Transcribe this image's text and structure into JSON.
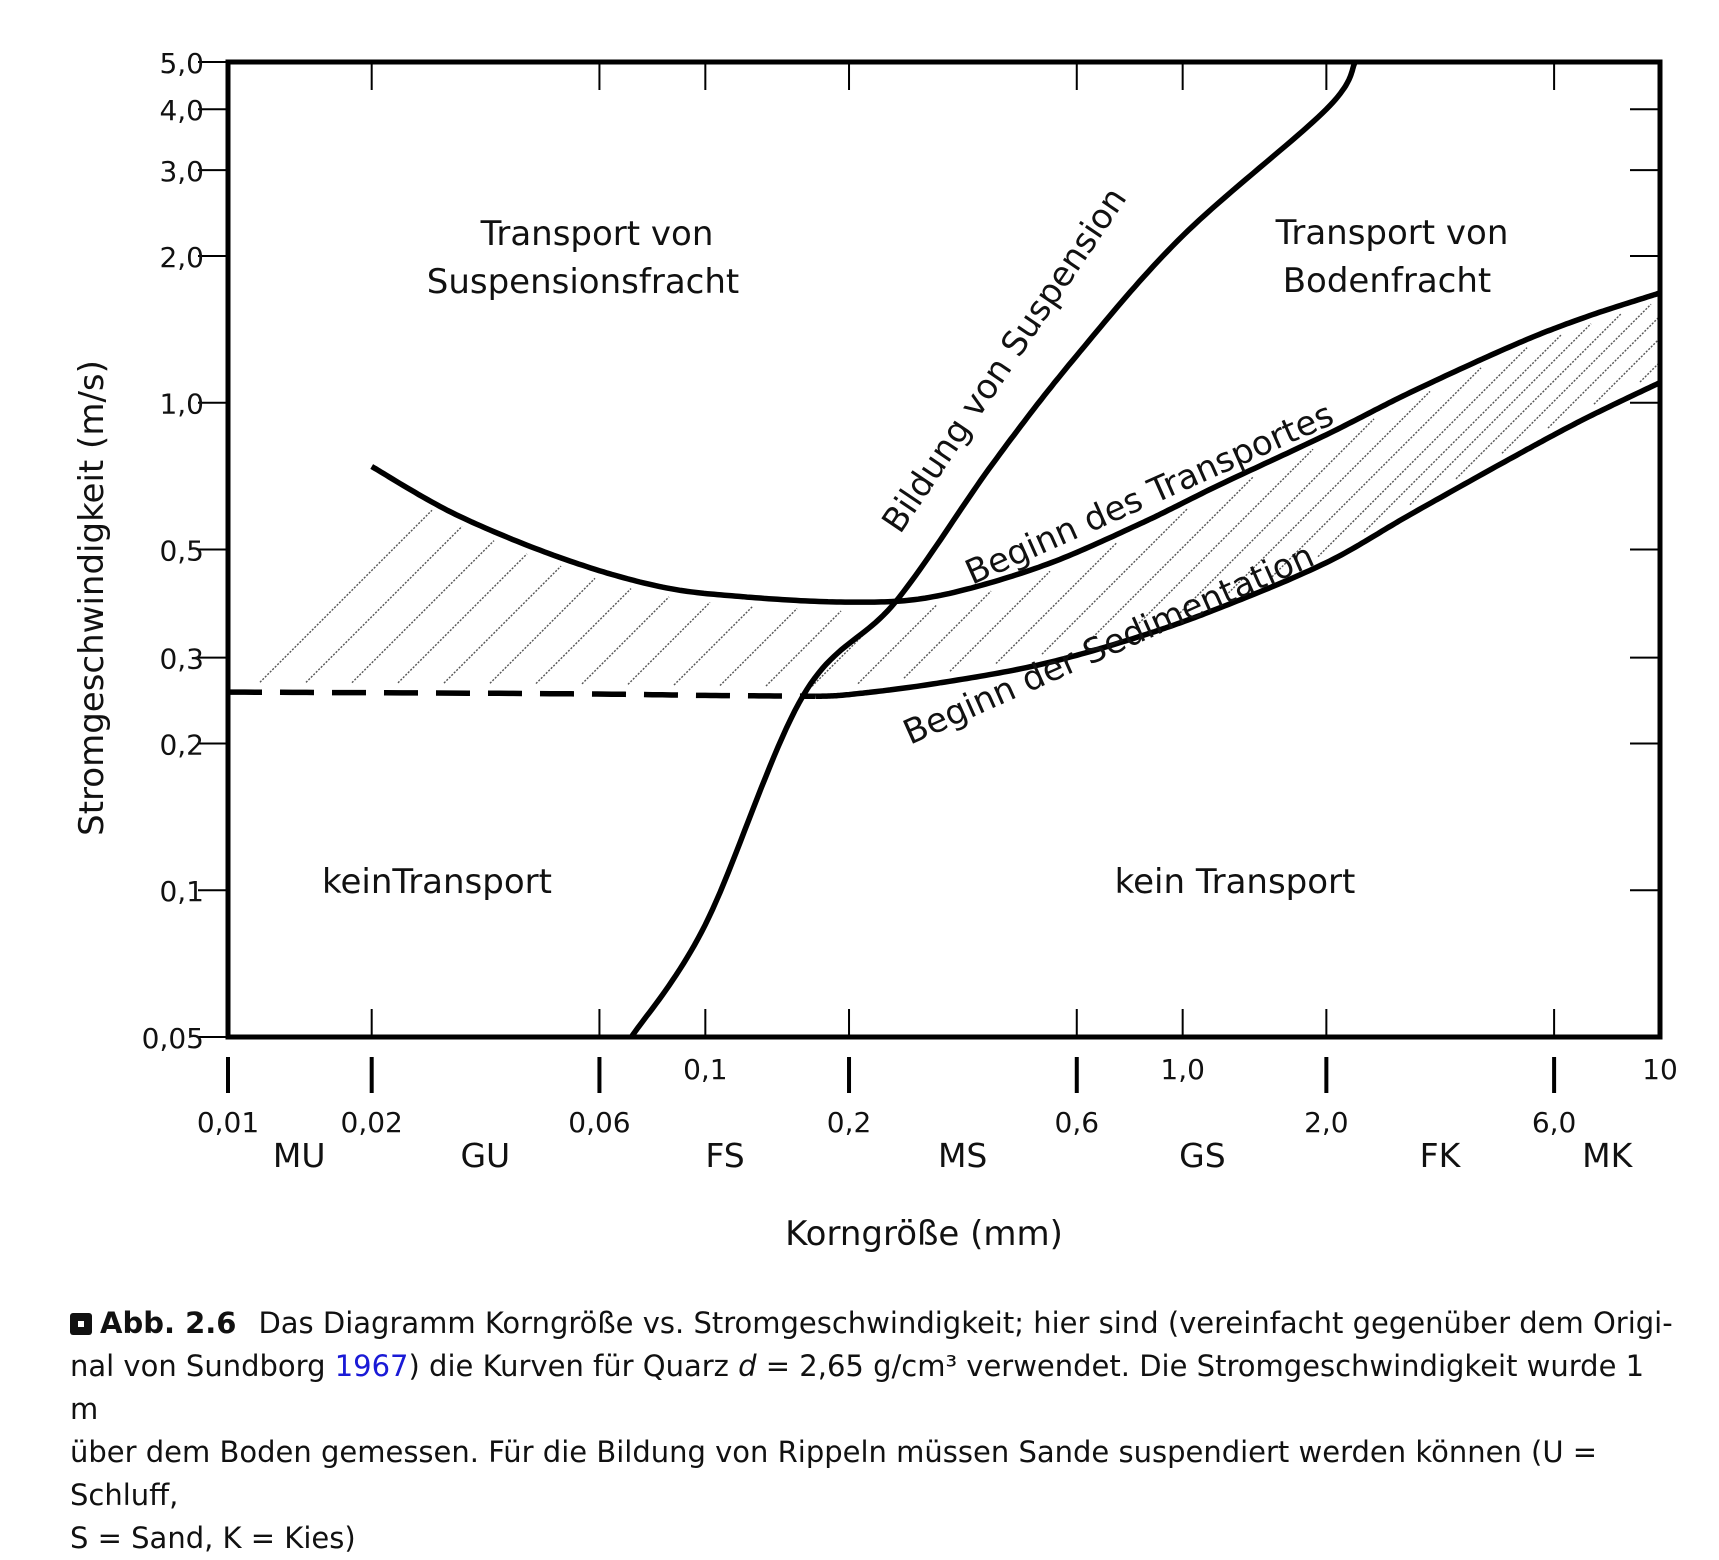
{
  "chart_data": {
    "type": "line",
    "xlabel": "Korngröße (mm)",
    "ylabel": "Stromgeschwindigkeit (m/s)",
    "x_scale": "log",
    "y_scale": "log",
    "xlim": [
      0.01,
      10
    ],
    "ylim": [
      0.05,
      5.0
    ],
    "y_ticks": [
      {
        "value": 5.0,
        "label": "5,0"
      },
      {
        "value": 4.0,
        "label": "4,0"
      },
      {
        "value": 3.0,
        "label": "3,0"
      },
      {
        "value": 2.0,
        "label": "2,0"
      },
      {
        "value": 1.0,
        "label": "1,0"
      },
      {
        "value": 0.5,
        "label": "0,5"
      },
      {
        "value": 0.3,
        "label": "0,3"
      },
      {
        "value": 0.2,
        "label": "0,2"
      },
      {
        "value": 0.1,
        "label": "0,1"
      },
      {
        "value": 0.05,
        "label": "0,05"
      }
    ],
    "x_ticks_upper": [
      {
        "value": 0.1,
        "label": "0,1"
      },
      {
        "value": 1.0,
        "label": "1,0"
      },
      {
        "value": 10,
        "label": "10"
      }
    ],
    "x_ticks_lower": [
      {
        "value": 0.01,
        "label": "0,01"
      },
      {
        "value": 0.02,
        "label": "0,02"
      },
      {
        "value": 0.06,
        "label": "0,06"
      },
      {
        "value": 0.2,
        "label": "0,2"
      },
      {
        "value": 0.6,
        "label": "0,6"
      },
      {
        "value": 2.0,
        "label": "2,0"
      },
      {
        "value": 6.0,
        "label": "6,0"
      }
    ],
    "grain_classes": [
      {
        "label": "MU",
        "x": 0.0141
      },
      {
        "label": "GU",
        "x": 0.0346
      },
      {
        "label": "FS",
        "x": 0.11
      },
      {
        "label": "MS",
        "x": 0.346
      },
      {
        "label": "GS",
        "x": 1.1
      },
      {
        "label": "FK",
        "x": 3.46
      },
      {
        "label": "MK",
        "x": 7.75
      }
    ],
    "series": [
      {
        "name": "Bildung von Suspension",
        "points": [
          [
            0.07,
            0.05
          ],
          [
            0.1,
            0.085
          ],
          [
            0.16,
            0.25
          ],
          [
            0.25,
            0.39
          ],
          [
            0.4,
            0.75
          ],
          [
            0.6,
            1.25
          ],
          [
            1.0,
            2.2
          ],
          [
            2.0,
            4.0
          ],
          [
            2.3,
            5.0
          ]
        ]
      },
      {
        "name": "Beginn des Transportes",
        "points": [
          [
            0.02,
            0.74
          ],
          [
            0.03,
            0.59
          ],
          [
            0.05,
            0.48
          ],
          [
            0.08,
            0.42
          ],
          [
            0.12,
            0.4
          ],
          [
            0.2,
            0.39
          ],
          [
            0.3,
            0.4
          ],
          [
            0.5,
            0.46
          ],
          [
            0.8,
            0.56
          ],
          [
            1.2,
            0.68
          ],
          [
            2.0,
            0.86
          ],
          [
            3.0,
            1.05
          ],
          [
            5.0,
            1.32
          ],
          [
            7.0,
            1.5
          ],
          [
            10,
            1.68
          ]
        ]
      },
      {
        "name": "Beginn der Sedimentation",
        "points": [
          [
            0.17,
            0.25
          ],
          [
            0.2,
            0.252
          ],
          [
            0.3,
            0.265
          ],
          [
            0.5,
            0.29
          ],
          [
            0.8,
            0.33
          ],
          [
            1.2,
            0.38
          ],
          [
            2.0,
            0.47
          ],
          [
            3.0,
            0.59
          ],
          [
            5.0,
            0.78
          ],
          [
            7.0,
            0.93
          ],
          [
            10,
            1.1
          ]
        ]
      },
      {
        "name": "",
        "dashed": true,
        "points": [
          [
            0.01,
            0.255
          ],
          [
            0.05,
            0.253
          ],
          [
            0.1,
            0.251
          ],
          [
            0.17,
            0.25
          ]
        ]
      }
    ],
    "annotations": [
      {
        "text": "Transport von",
        "x": 0.06,
        "y": 2.35
      },
      {
        "text": "Suspensionsfracht",
        "x": 0.06,
        "y": 1.9
      },
      {
        "text": "Transport von",
        "x": 3.0,
        "y": 2.35
      },
      {
        "text": "Bodenfracht",
        "x": 3.0,
        "y": 1.9
      },
      {
        "text": "keinTransport",
        "x": 0.028,
        "y": 0.1
      },
      {
        "text": "kein Transport",
        "x": 1.5,
        "y": 0.1
      }
    ],
    "grid": false
  },
  "caption": {
    "label": "Abb. 2.6",
    "text1": "Das Diagramm Korngröße vs. Stromgeschwindigkeit; hier sind (vereinfacht gegenüber dem Origi-",
    "text2a": "nal von Sundborg ",
    "link": "1967",
    "text2b": ") die Kurven für Quarz ",
    "var": "d",
    "text2c": " = 2,65 g/cm³ verwendet. Die Stromgeschwindigkeit wurde 1 m",
    "text3": "über dem Boden gemessen. Für die Bildung von Rippeln müssen Sande suspendiert werden können (U = Schluff,",
    "text4": "S = Sand, K = Kies)"
  }
}
